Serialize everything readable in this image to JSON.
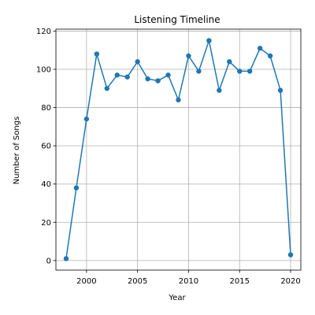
{
  "chart_data": {
    "type": "line",
    "title": "Listening Timeline",
    "xlabel": "Year",
    "ylabel": "Number of Songs",
    "xlim": [
      1997,
      2021
    ],
    "ylim": [
      -5,
      121
    ],
    "xticks": [
      2000,
      2005,
      2010,
      2015,
      2020
    ],
    "yticks": [
      0,
      20,
      40,
      60,
      80,
      100,
      120
    ],
    "grid": true,
    "line_color": "#1f77b4",
    "marker": "circle",
    "x": [
      1998,
      1999,
      2000,
      2001,
      2002,
      2003,
      2004,
      2005,
      2006,
      2007,
      2008,
      2009,
      2010,
      2011,
      2012,
      2013,
      2014,
      2015,
      2016,
      2017,
      2018,
      2019,
      2020
    ],
    "y": [
      1,
      38,
      74,
      108,
      90,
      97,
      96,
      104,
      95,
      94,
      97,
      84,
      107,
      99,
      115,
      89,
      104,
      99,
      99,
      111,
      107,
      89,
      3
    ]
  }
}
